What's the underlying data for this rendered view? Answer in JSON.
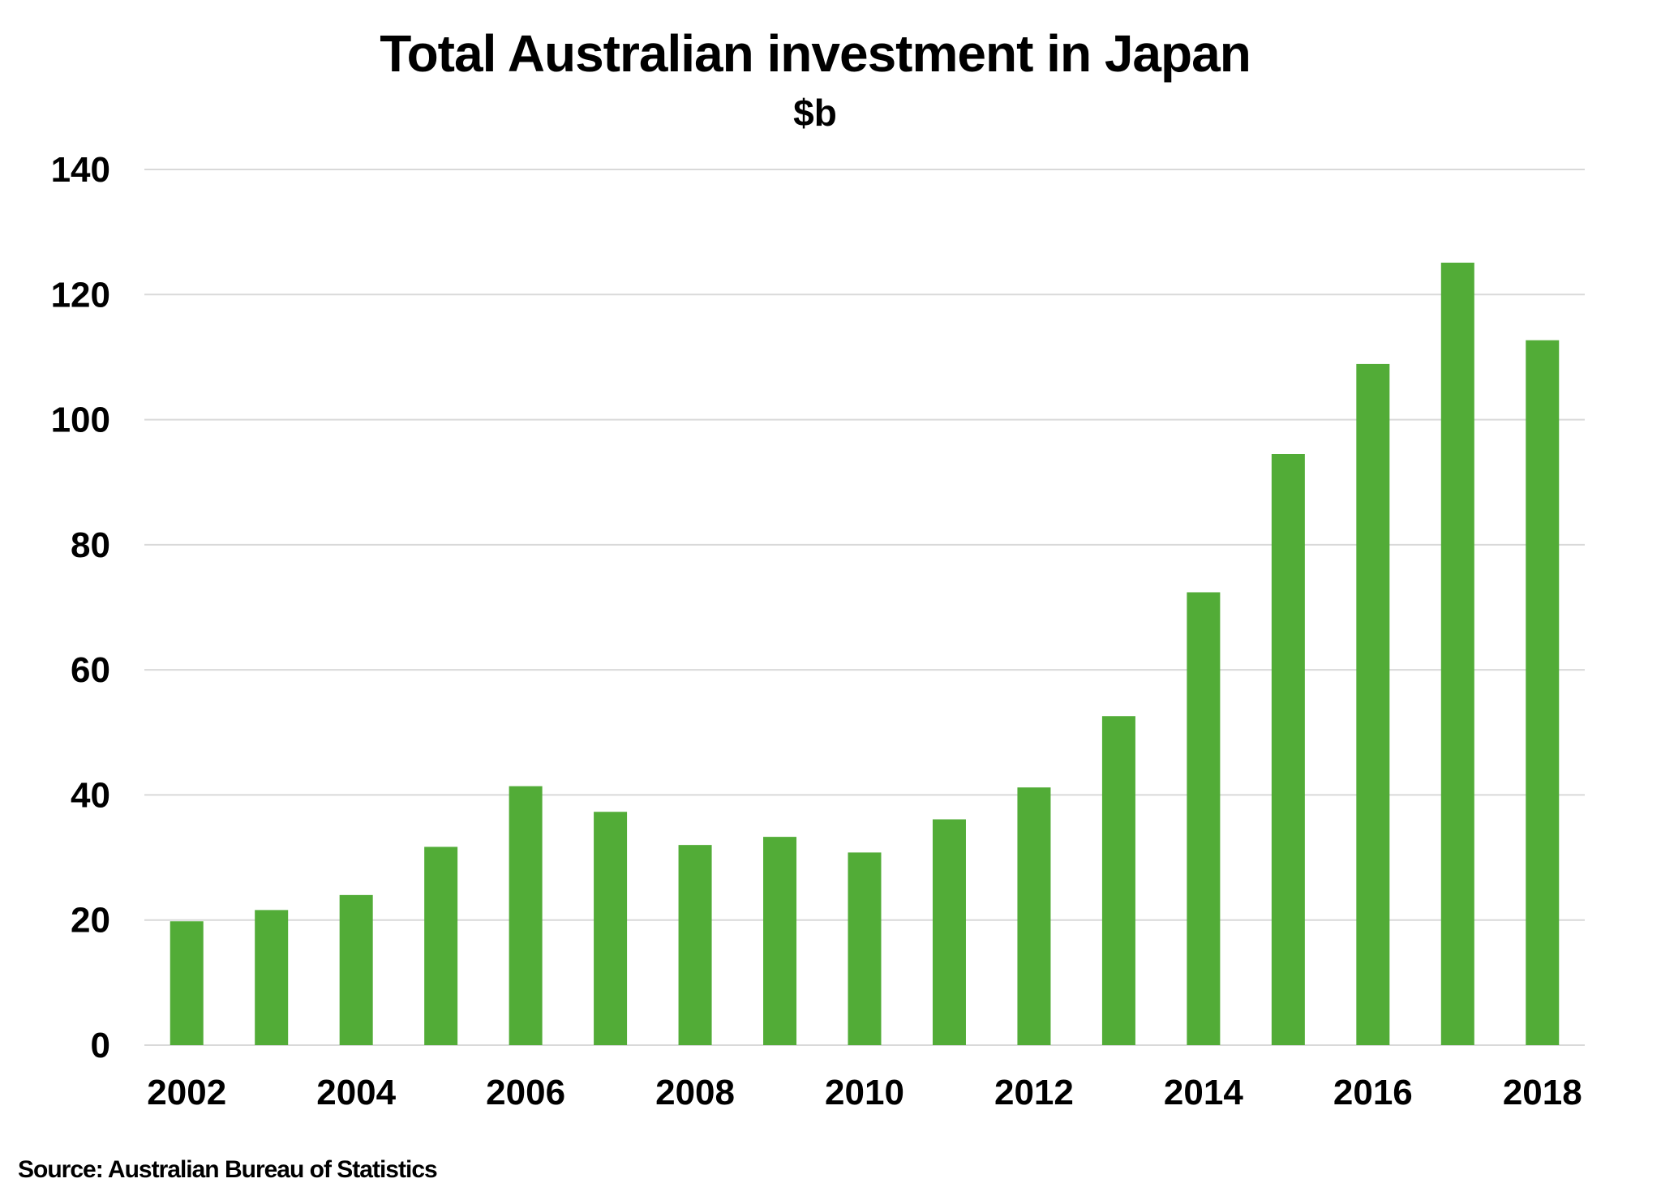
{
  "colors": {
    "bar": "#52AC37",
    "grid": "#D9D9D9",
    "text": "#000000",
    "background": "#FFFFFF"
  },
  "chart_data": {
    "type": "bar",
    "title": "Total Australian  investment in Japan",
    "subtitle": "$b",
    "xlabel": "",
    "ylabel": "",
    "categories": [
      "2002",
      "2003",
      "2004",
      "2005",
      "2006",
      "2007",
      "2008",
      "2009",
      "2010",
      "2011",
      "2012",
      "2013",
      "2014",
      "2015",
      "2016",
      "2017",
      "2018"
    ],
    "x_tick_labels": [
      "2002",
      "2004",
      "2006",
      "2008",
      "2010",
      "2012",
      "2014",
      "2016",
      "2018"
    ],
    "series": [
      {
        "values": [
          19.8,
          21.6,
          24.0,
          31.7,
          41.4,
          37.3,
          32.0,
          33.3,
          30.8,
          36.1,
          41.2,
          52.6,
          72.4,
          94.5,
          108.9,
          125.1,
          112.7
        ]
      }
    ],
    "ylim": [
      0,
      140
    ],
    "y_ticks": [
      0,
      20,
      40,
      60,
      80,
      100,
      120,
      140
    ],
    "grid": true,
    "legend": "none",
    "source": "Source: Australian Bureau of Statistics"
  }
}
